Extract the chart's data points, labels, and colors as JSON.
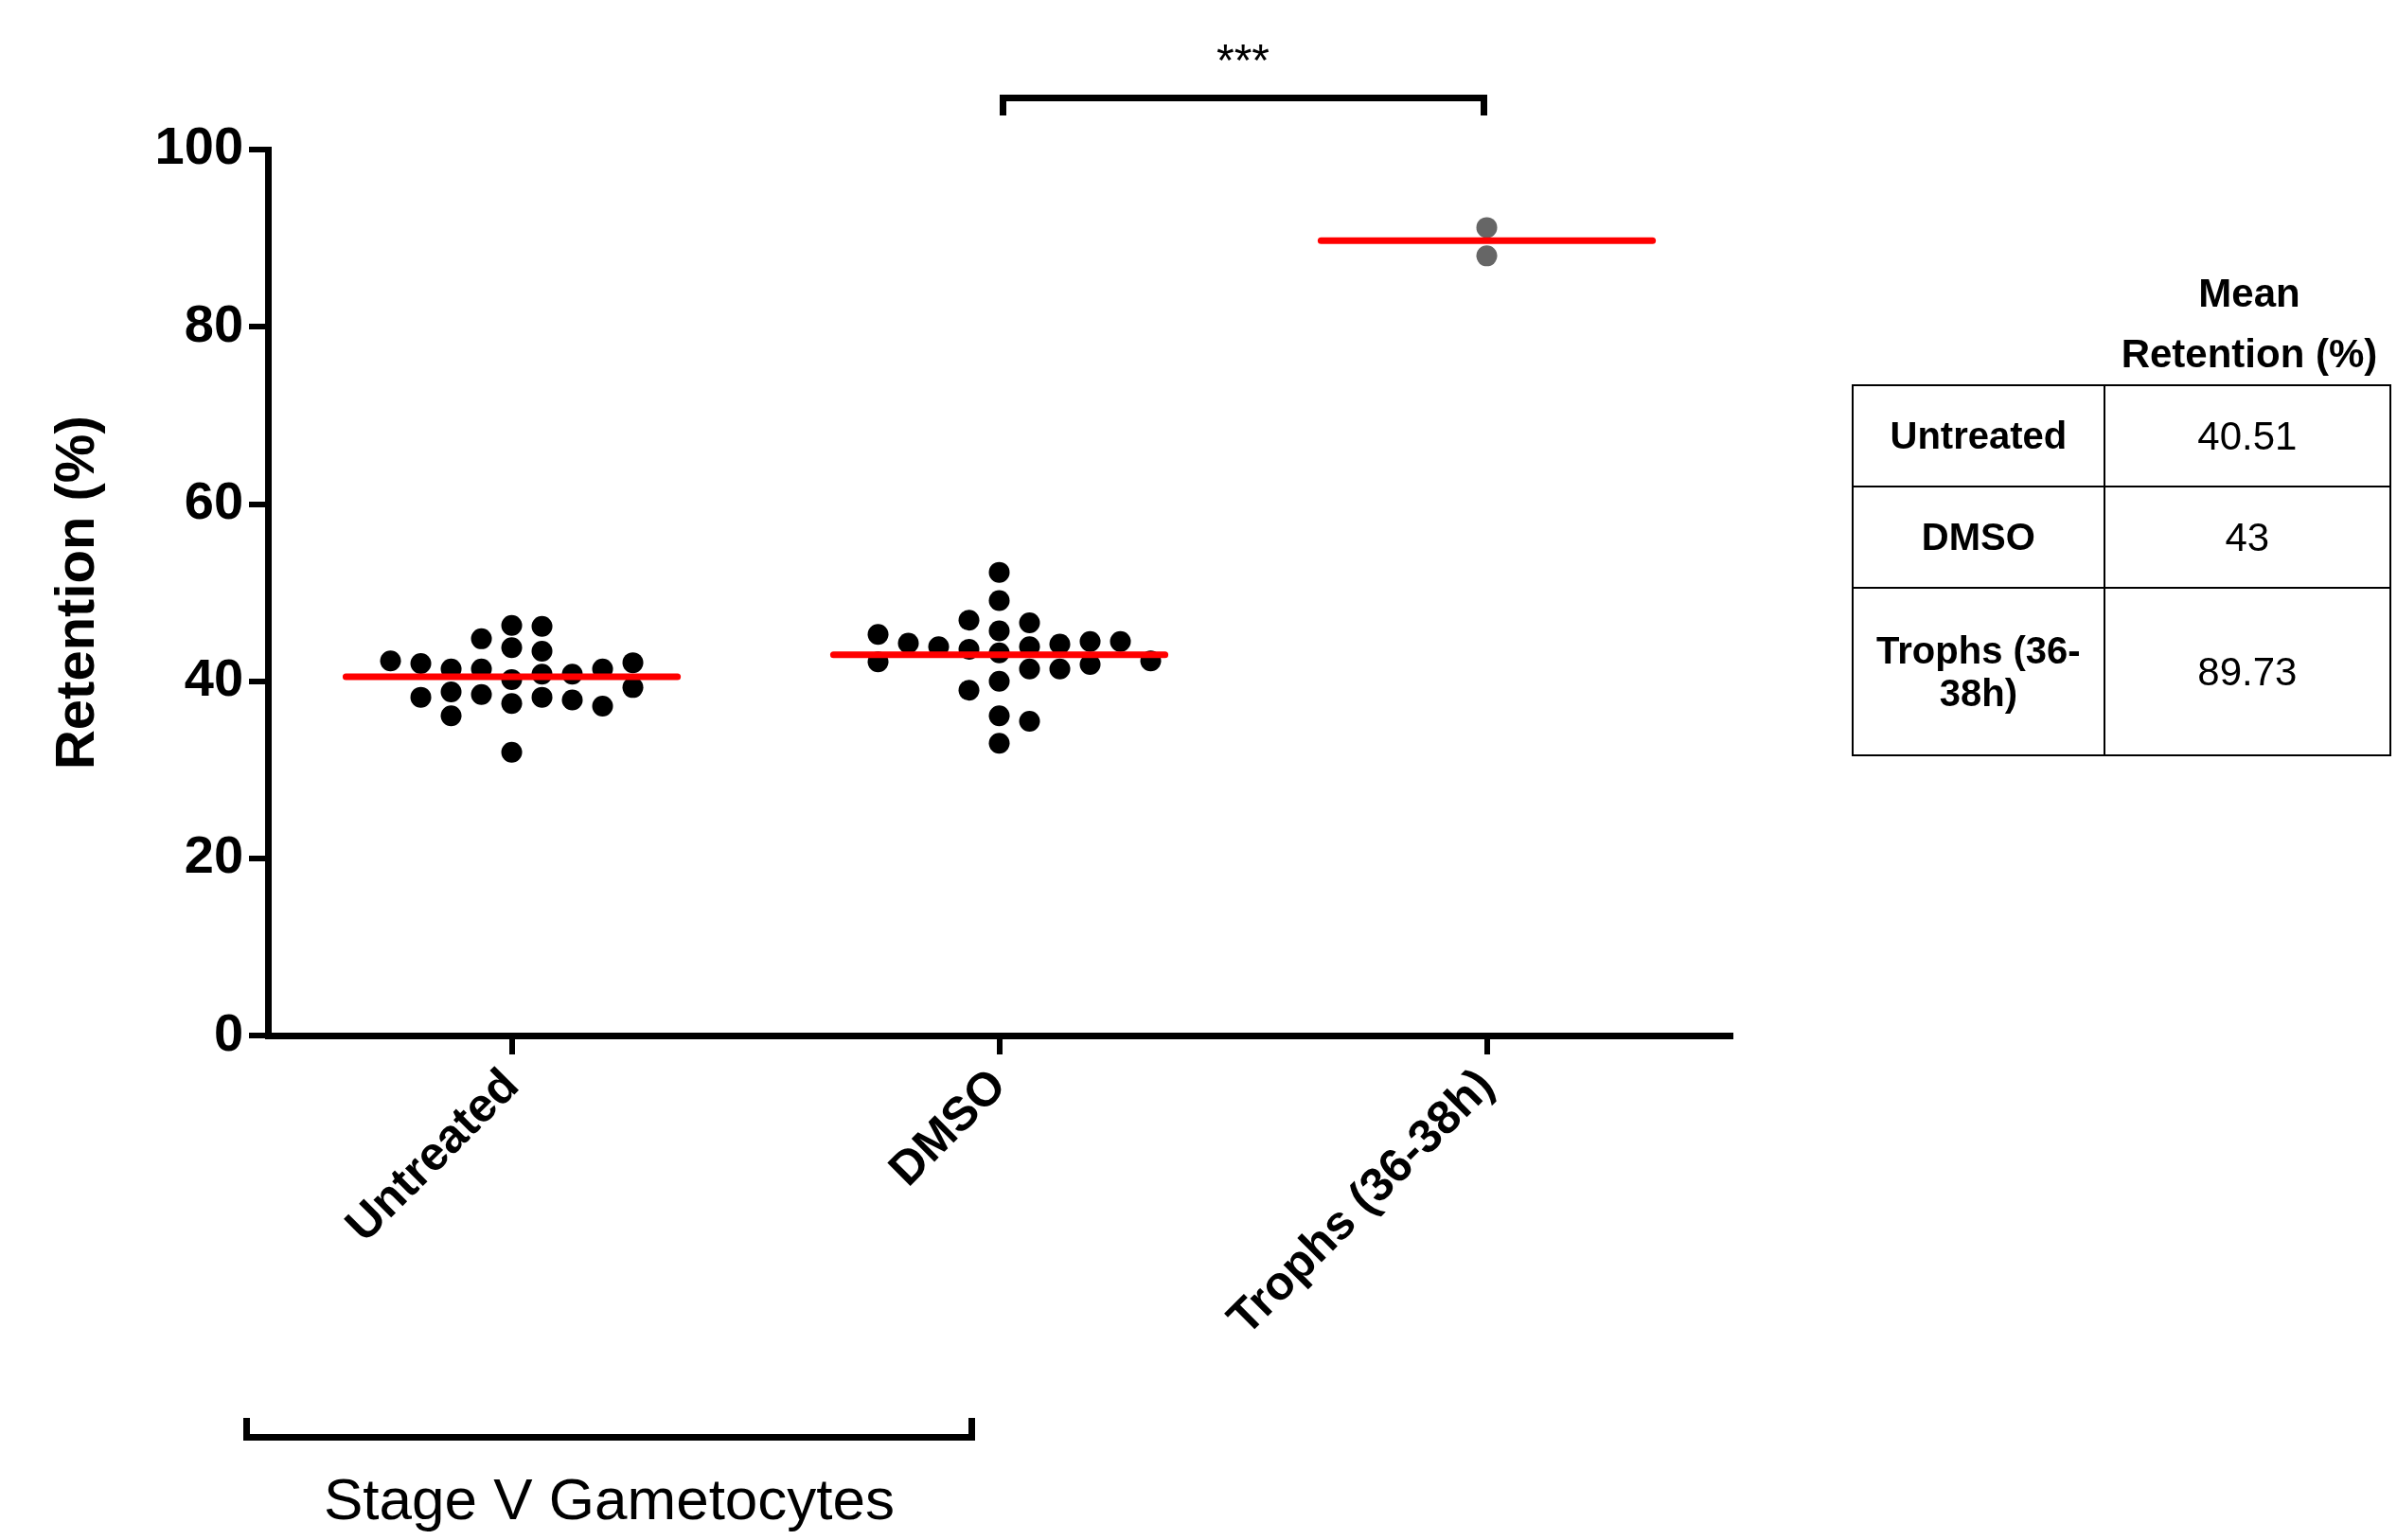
{
  "chart_data": [
    {
      "type": "scatter",
      "ylabel": "Retention (%)",
      "categories": [
        "Untreated",
        "DMSO",
        "Trophs (36-38h)"
      ],
      "ylim": [
        0,
        100
      ],
      "yticks": [
        0,
        20,
        40,
        60,
        80,
        100
      ],
      "grid": false,
      "legend": false,
      "marker": "circle",
      "annotations": [
        "***",
        "Stage V Gametocytes"
      ],
      "ref_lines": [
        {
          "axis": "y",
          "value": 40.51,
          "color": "#ff0000"
        },
        {
          "axis": "y",
          "value": 43,
          "color": "#ff0000"
        },
        {
          "axis": "y",
          "value": 89.73,
          "color": "#ff0000"
        }
      ],
      "series": [
        {
          "color": "#000000",
          "x": [
            "Untreated",
            "Untreated",
            "Untreated",
            "Untreated",
            "Untreated",
            "Untreated",
            "Untreated",
            "Untreated",
            "Untreated",
            "Untreated",
            "Untreated",
            "Untreated",
            "Untreated",
            "Untreated",
            "Untreated",
            "Untreated",
            "Untreated",
            "Untreated",
            "Untreated",
            "Untreated",
            "Untreated",
            "Untreated",
            "Untreated",
            "Untreated"
          ],
          "values": [
            40.2,
            40.8,
            41.4,
            40.8,
            41.4,
            41.4,
            42.0,
            42.1,
            42.3,
            43.8,
            43.4,
            44.8,
            46.3,
            46.2,
            38.2,
            38.5,
            38.8,
            37.5,
            37.9,
            37.2,
            38.2,
            39.3,
            36.1,
            32.0
          ]
        },
        {
          "color": "#000000",
          "x": [
            "DMSO",
            "DMSO",
            "DMSO",
            "DMSO",
            "DMSO",
            "DMSO",
            "DMSO",
            "DMSO",
            "DMSO",
            "DMSO",
            "DMSO",
            "DMSO",
            "DMSO",
            "DMSO",
            "DMSO",
            "DMSO",
            "DMSO",
            "DMSO",
            "DMSO",
            "DMSO",
            "DMSO",
            "DMSO",
            "DMSO",
            "DMSO"
          ],
          "values": [
            43.2,
            43.9,
            43.6,
            44.2,
            43.9,
            44.5,
            44.3,
            44.5,
            45.3,
            45.7,
            46.6,
            46.9,
            49.1,
            52.3,
            42.2,
            41.4,
            41.9,
            42.3,
            41.4,
            40.0,
            39.0,
            36.1,
            35.5,
            33.0
          ]
        },
        {
          "color": "#666666",
          "x": [
            "Trophs (36-38h)",
            "Trophs (36-38h)"
          ],
          "values": [
            88.0,
            91.2
          ]
        }
      ]
    },
    {
      "type": "other",
      "title": "Mean Retention (%)",
      "categories": [
        "Untreated",
        "DMSO",
        "Trophs (36-38h)"
      ],
      "values": [
        40.51,
        43,
        89.73
      ],
      "data_labels": true
    }
  ]
}
